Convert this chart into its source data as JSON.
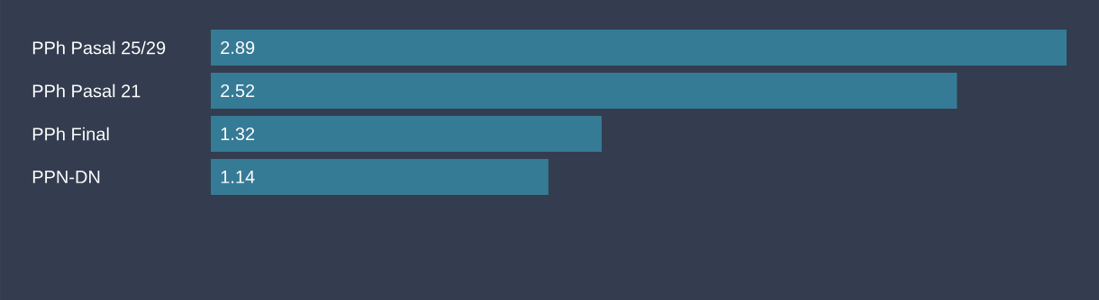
{
  "chart_data": {
    "type": "bar",
    "orientation": "horizontal",
    "categories": [
      "PPh Pasal 25/29",
      "PPh Pasal 21",
      "PPh Final",
      "PPN-DN"
    ],
    "values": [
      2.89,
      2.52,
      1.32,
      1.14
    ],
    "color": "#367b96",
    "data_labels": true
  }
}
